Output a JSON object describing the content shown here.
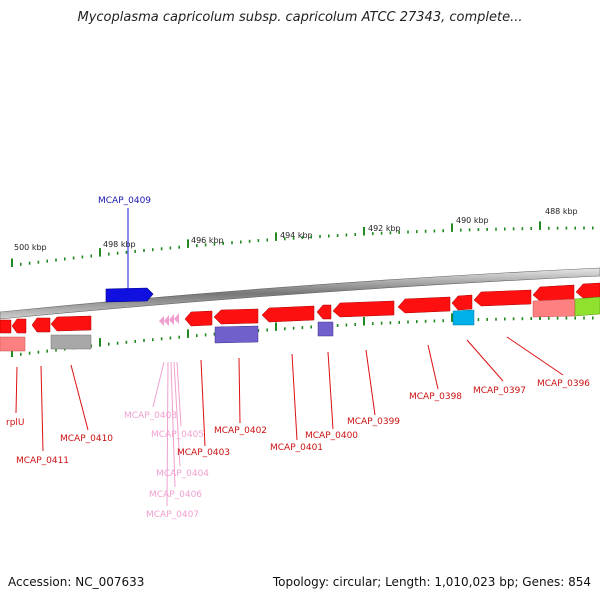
{
  "title": "Mycoplasma capricolum subsp. capricolum ATCC 27343, complete...",
  "footer": {
    "accession": "Accession: NC_007633",
    "summary": "Topology: circular; Length: 1,010,023 bp; Genes: 854"
  },
  "colors": {
    "gene": "#ff1010",
    "gene_light": "#ff8080",
    "selected": "#1818dd",
    "pink": "#f0a0d0",
    "purple": "#7060cc",
    "cyan": "#00b0e8",
    "grey": "#a0a0a0",
    "lime": "#90e030",
    "tick": "#228822",
    "backbone": "#888888"
  },
  "kbp_labels": [
    "500 kbp",
    "498 kbp",
    "496 kbp",
    "494 kbp",
    "492 kbp",
    "490 kbp",
    "488 kbp"
  ],
  "gene_labels": {
    "MCAP_0409": "MCAP_0409",
    "rplU": "rplU",
    "MCAP_0411": "MCAP_0411",
    "MCAP_0410": "MCAP_0410",
    "MCAP_0408": "MCAP_0408",
    "MCAP_0405": "MCAP_0405",
    "MCAP_0404": "MCAP_0404",
    "MCAP_0406": "MCAP_0406",
    "MCAP_0407": "MCAP_0407",
    "MCAP_0403": "MCAP_0403",
    "MCAP_0402": "MCAP_0402",
    "MCAP_0401": "MCAP_0401",
    "MCAP_0400": "MCAP_0400",
    "MCAP_0399": "MCAP_0399",
    "MCAP_0398": "MCAP_0398",
    "MCAP_0397": "MCAP_0397",
    "MCAP_0396": "MCAP_0396"
  }
}
